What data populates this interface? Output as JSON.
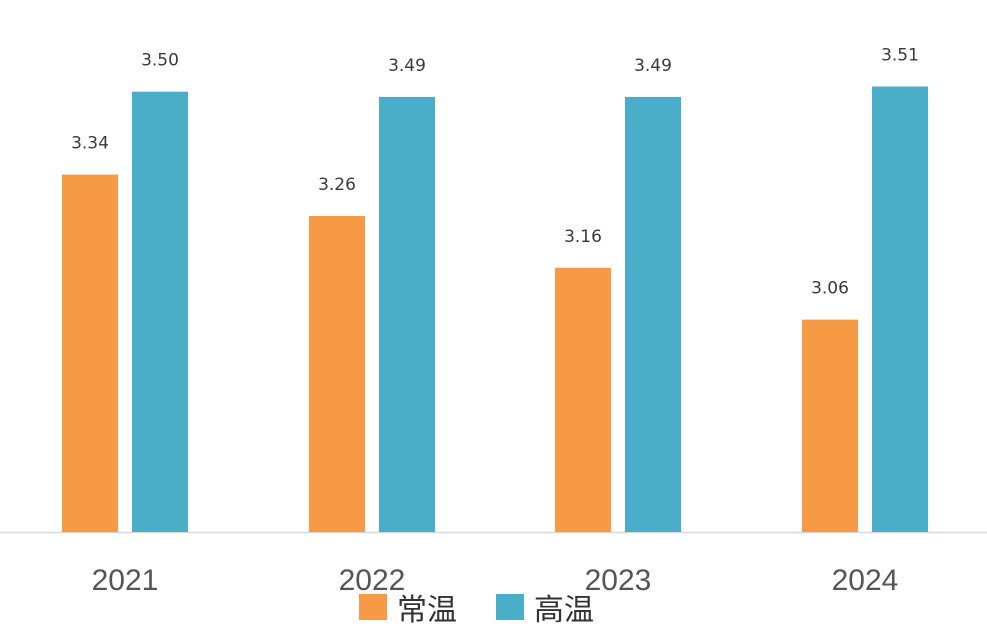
{
  "chart_data": {
    "type": "bar",
    "categories": [
      "2021",
      "2022",
      "2023",
      "2024"
    ],
    "series": [
      {
        "name": "常温",
        "color": "#F79A45",
        "values": [
          3.34,
          3.26,
          3.16,
          3.06
        ],
        "labels": [
          "3.34",
          "3.26",
          "3.16",
          "3.06"
        ]
      },
      {
        "name": "高温",
        "color": "#4BAEC8",
        "values": [
          3.5,
          3.49,
          3.49,
          3.51
        ],
        "labels": [
          "3.50",
          "3.49",
          "3.49",
          "3.51"
        ]
      }
    ],
    "title": "",
    "xlabel": "",
    "ylabel": "",
    "grid": false,
    "legend_position": "bottom",
    "axis_line_color": "#d9d9d9"
  }
}
